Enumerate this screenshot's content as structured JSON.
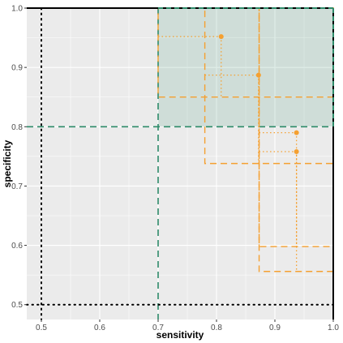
{
  "chart_data": {
    "type": "scatter",
    "xlabel": "sensitivity",
    "ylabel": "specificity",
    "xlim": [
      0.475,
      1.0
    ],
    "ylim": [
      0.475,
      1.0
    ],
    "x_ticks": [
      0.5,
      0.6,
      0.7,
      0.8,
      0.9,
      1.0
    ],
    "y_ticks": [
      0.5,
      0.6,
      0.7,
      0.8,
      0.9,
      1.0
    ],
    "x_tick_labels": [
      "0.5",
      "0.6",
      "0.7",
      "0.8",
      "0.9",
      "1.0"
    ],
    "y_tick_labels": [
      "0.5",
      "0.6",
      "0.7",
      "0.8",
      "0.9",
      "1.0"
    ],
    "grid": true,
    "target_region": {
      "x_min": 0.7,
      "y_min": 0.8,
      "x_max": 1.0,
      "y_max": 1.0,
      "color": "#2e8b6a"
    },
    "random_guess_lines": {
      "x": 0.5,
      "y": 0.5
    },
    "points": [
      {
        "x": 0.808,
        "y": 0.952
      },
      {
        "x": 0.872,
        "y": 0.887
      },
      {
        "x": 0.937,
        "y": 0.79
      },
      {
        "x": 0.937,
        "y": 0.758
      }
    ],
    "confidence_boxes": [
      {
        "x_min": 0.7,
        "y_min": 0.85,
        "x_max": 1.0,
        "y_max": 1.0
      },
      {
        "x_min": 0.78,
        "y_min": 0.738,
        "x_max": 1.0,
        "y_max": 1.0
      },
      {
        "x_min": 0.873,
        "y_min": 0.598,
        "x_max": 1.0,
        "y_max": 1.0
      },
      {
        "x_min": 0.873,
        "y_min": 0.556,
        "x_max": 1.0,
        "y_max": 1.0
      }
    ],
    "colors": {
      "panel": "#ebebeb",
      "grid": "#ffffff",
      "points": "#f5a030",
      "target": "#2e8b6a",
      "reference": "#000000"
    }
  }
}
